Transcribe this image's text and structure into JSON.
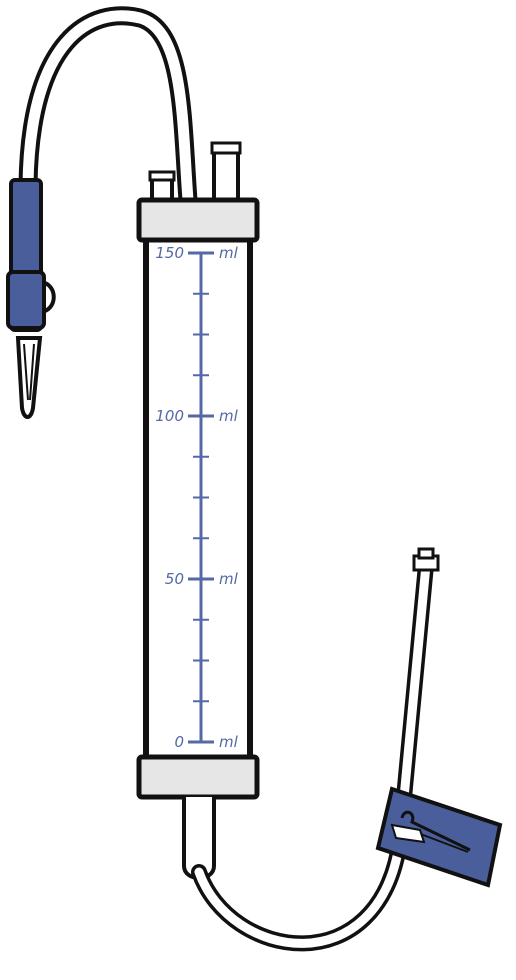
{
  "colors": {
    "outline": "#111111",
    "accent": "#4b5e9c",
    "scale": "#5469a6",
    "cap": "#e6e6e6",
    "tube": "#ffffff"
  },
  "scale": {
    "unit_labels": [
      "ml",
      "ml",
      "ml",
      "ml"
    ],
    "labels": [
      {
        "value": "150",
        "unit": "ml",
        "level": 150
      },
      {
        "value": "100",
        "unit": "ml",
        "level": 100
      },
      {
        "value": "50",
        "unit": "ml",
        "level": 50
      },
      {
        "value": "0",
        "unit": "ml",
        "level": 0
      }
    ],
    "max": 150,
    "minor_step": 12.5
  },
  "icons": {
    "spike": "drip-spike-icon",
    "roller_clamp": "roller-clamp-icon",
    "connector": "luer-connector-icon"
  }
}
